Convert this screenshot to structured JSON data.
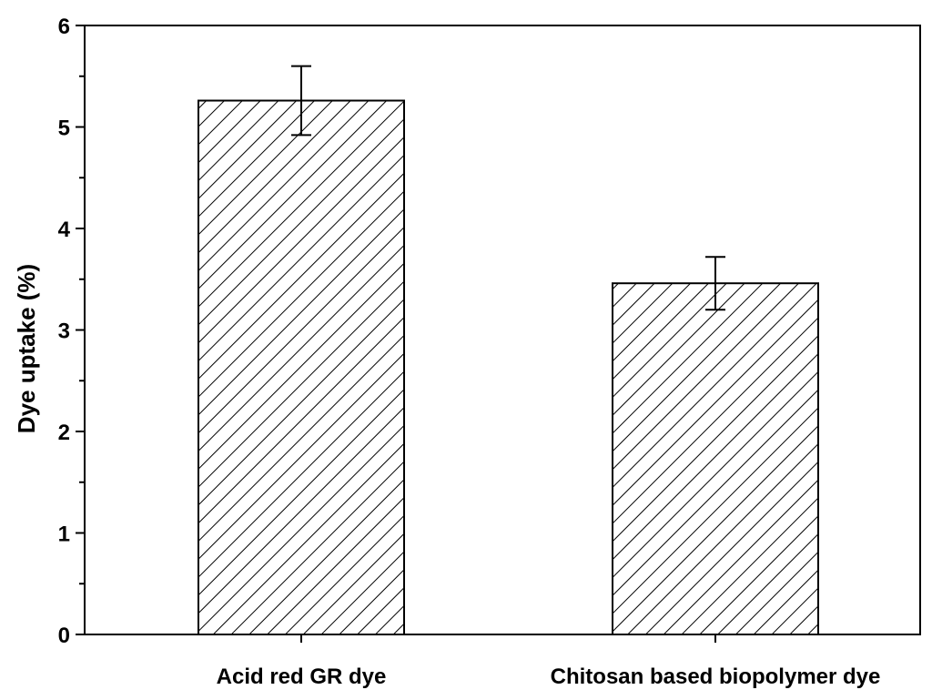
{
  "chart_data": {
    "type": "bar",
    "title": "",
    "xlabel": "",
    "ylabel": "Dye uptake (%)",
    "categories": [
      "Acid red GR dye",
      "Chitosan based biopolymer dye"
    ],
    "values": [
      5.26,
      3.46
    ],
    "error_bars": [
      0.34,
      0.26
    ],
    "ylim": [
      0,
      6
    ],
    "yticks": [
      "0",
      "1",
      "2",
      "3",
      "4",
      "5",
      "6"
    ],
    "bar_style": "diagonal-hatch",
    "grid": false,
    "legend": "none"
  },
  "colors": {
    "axis": "#000000",
    "bar_fill": "#ffffff",
    "hatch": "#000000"
  }
}
